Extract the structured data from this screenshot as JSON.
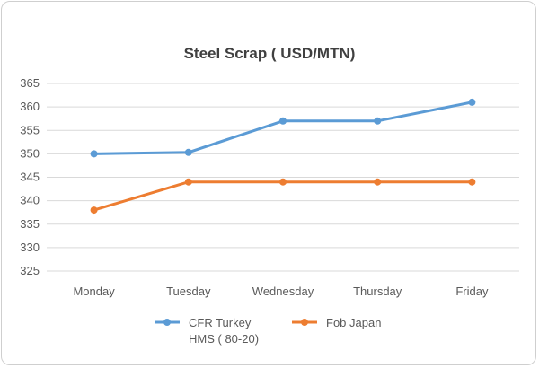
{
  "chart_data": {
    "type": "line",
    "title": "Steel Scrap ( USD/MTN)",
    "xlabel": "",
    "ylabel": "",
    "categories": [
      "Monday",
      "Tuesday",
      "Wednesday",
      "Thursday",
      "Friday"
    ],
    "ylim": [
      325,
      365
    ],
    "yticks": [
      325,
      330,
      335,
      340,
      345,
      350,
      355,
      360,
      365
    ],
    "grid": true,
    "legend_position": "bottom",
    "series": [
      {
        "name": "CFR Turkey HMS ( 80-20)",
        "name_lines": [
          "CFR Turkey",
          "HMS ( 80-20)"
        ],
        "color": "#5b9bd5",
        "values": [
          350,
          350.3,
          357,
          357,
          361
        ]
      },
      {
        "name": "Fob Japan",
        "name_lines": [
          "Fob Japan"
        ],
        "color": "#ed7d31",
        "values": [
          338,
          344,
          344,
          344,
          344
        ]
      }
    ]
  }
}
